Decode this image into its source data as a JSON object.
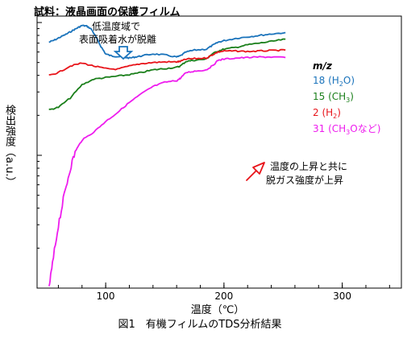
{
  "chart_data": {
    "type": "line",
    "title": "試料：液晶画面の保護フィルム",
    "caption": "図1　有機フィルムのTDS分析結果",
    "xlabel": "温度（℃）",
    "ylabel": "検出強度（a.u.）",
    "xlim": [
      42,
      350
    ],
    "ylim": [
      0,
      100
    ],
    "y_scale": "log",
    "grid": false,
    "x_ticks": [
      100,
      200,
      300
    ],
    "legend_header": "m/z",
    "annotations": {
      "peak_note_line1": "低温度域で",
      "peak_note_line2": "表面吸着水が脱離",
      "arrow_note_line1": "温度の上昇と共に",
      "arrow_note_line2": "脱ガス強度が上昇"
    },
    "series": [
      {
        "name": "18 (H₂O)",
        "label_main": "18 (H",
        "label_sub": "2",
        "label_tail": "O)",
        "color": "#1a73bb",
        "x": [
          52,
          57,
          62,
          67,
          72,
          76,
          80,
          84,
          88,
          92,
          96,
          100,
          105,
          110,
          115,
          120,
          125,
          130,
          140,
          150,
          160,
          163,
          168,
          175,
          185,
          190,
          195,
          200,
          210,
          220,
          230,
          240,
          252
        ],
        "y": [
          71,
          74,
          78,
          82,
          87,
          91,
          95,
          94,
          89,
          77,
          66,
          58,
          56,
          55.5,
          55,
          54,
          55,
          56,
          58,
          57,
          55,
          56,
          60,
          62,
          63,
          67,
          71,
          73,
          76,
          78,
          80,
          82,
          84
        ]
      },
      {
        "name": "15 (CH₃)",
        "label_main": "15 (CH",
        "label_sub": "3",
        "label_tail": ")",
        "color": "#1a7f1a",
        "x": [
          52,
          60,
          70,
          80,
          90,
          100,
          110,
          120,
          130,
          140,
          150,
          160,
          163,
          168,
          175,
          185,
          190,
          195,
          200,
          210,
          220,
          230,
          240,
          252
        ],
        "y": [
          22,
          23,
          27,
          34,
          37.5,
          38.5,
          39.5,
          40.5,
          42,
          44,
          45,
          46,
          47,
          51,
          52,
          53,
          58,
          61,
          63,
          65,
          68,
          70,
          72,
          75
        ]
      },
      {
        "name": "2 (H₂)",
        "label_main": "2 (H",
        "label_sub": "2",
        "label_tail": ")",
        "color": "#e8141a",
        "x": [
          52,
          60,
          70,
          80,
          90,
          100,
          110,
          120,
          130,
          140,
          150,
          160,
          163,
          168,
          175,
          185,
          190,
          195,
          200,
          210,
          220,
          230,
          240,
          252
        ],
        "y": [
          40,
          42,
          47,
          49.5,
          47,
          45,
          44.5,
          47,
          49,
          50,
          50.5,
          50.5,
          51,
          53,
          53.5,
          54,
          57,
          60,
          61,
          61,
          60.5,
          61,
          61.5,
          62
        ]
      },
      {
        "name": "31 (CH₃Oなど)",
        "label_main": "31 (CH",
        "label_sub": "3",
        "label_tail": "Oなど)",
        "color": "#ee1cee",
        "x": [
          52,
          55,
          60,
          65,
          70,
          75,
          80,
          90,
          100,
          110,
          120,
          130,
          140,
          150,
          160,
          163,
          168,
          175,
          185,
          190,
          195,
          200,
          210,
          220,
          230,
          240,
          252
        ],
        "y": [
          1,
          1.5,
          3,
          5,
          8,
          11,
          13,
          15,
          18,
          21,
          25,
          29,
          33,
          35.5,
          36.5,
          38,
          42,
          43,
          44,
          47,
          52,
          53,
          54,
          54.5,
          55,
          55,
          54.5
        ]
      }
    ]
  }
}
